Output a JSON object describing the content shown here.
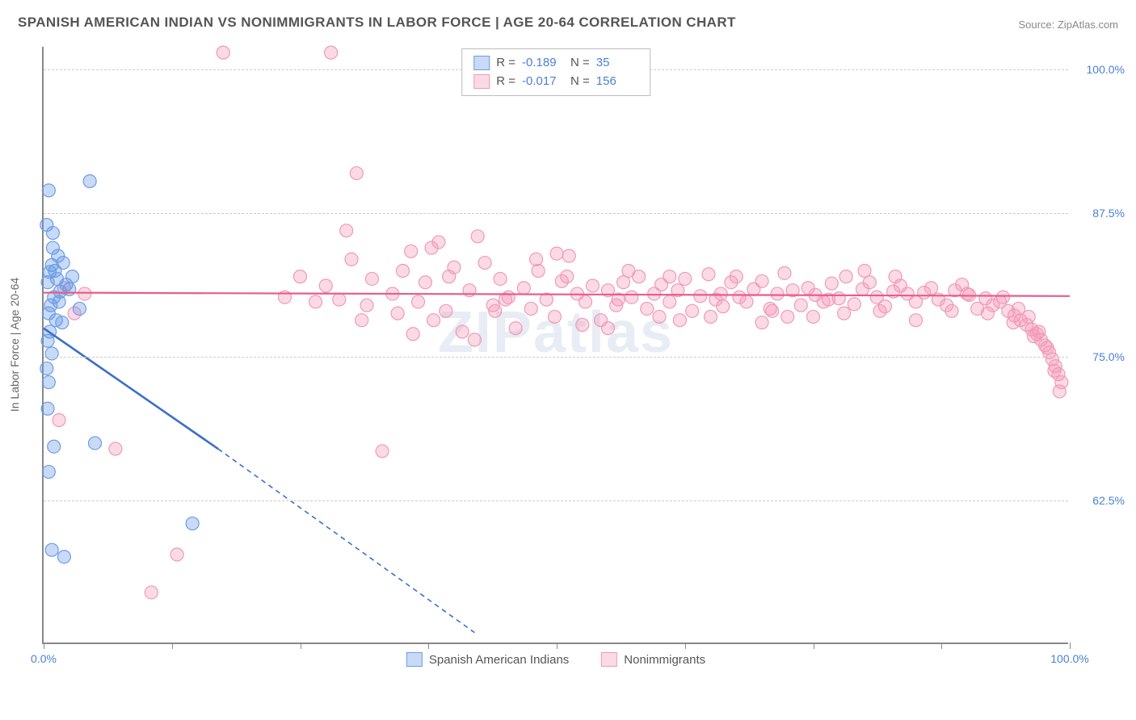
{
  "title": "SPANISH AMERICAN INDIAN VS NONIMMIGRANTS IN LABOR FORCE | AGE 20-64 CORRELATION CHART",
  "source": "Source: ZipAtlas.com",
  "watermark": "ZIPatlas",
  "yaxis_label": "In Labor Force | Age 20-64",
  "chart": {
    "type": "scatter",
    "xlim": [
      0,
      100
    ],
    "ylim": [
      50,
      102
    ],
    "xtick_positions": [
      0,
      12.5,
      25,
      37.5,
      50,
      62.5,
      75,
      87.5,
      100
    ],
    "xtick_labels": {
      "0": "0.0%",
      "100": "100.0%"
    },
    "ytick_positions": [
      62.5,
      75.0,
      87.5,
      100.0
    ],
    "ytick_labels": [
      "62.5%",
      "75.0%",
      "87.5%",
      "100.0%"
    ],
    "grid_color": "#cccccc",
    "axis_color": "#888888",
    "background": "#ffffff"
  },
  "series": {
    "blue": {
      "label": "Spanish American Indians",
      "fill": "rgba(100,150,230,0.35)",
      "stroke": "#6a9de8",
      "line_color": "#3b6fc9",
      "r_label": "R = ",
      "r_value": "-0.189",
      "n_label": "N = ",
      "n_value": "35",
      "marker_r": 8,
      "trend": {
        "x1": 0,
        "y1": 77.5,
        "x2_solid": 17,
        "y2_solid": 67,
        "x2_dash": 42,
        "y2_dash": 51
      },
      "points": [
        [
          0.3,
          86.5
        ],
        [
          0.5,
          89.5
        ],
        [
          0.8,
          83
        ],
        [
          0.9,
          84.5
        ],
        [
          0.4,
          81.5
        ],
        [
          1.1,
          82.5
        ],
        [
          1.3,
          81.8
        ],
        [
          1.6,
          80.7
        ],
        [
          0.7,
          79.5
        ],
        [
          1.0,
          80.2
        ],
        [
          0.5,
          78.8
        ],
        [
          1.5,
          79.8
        ],
        [
          2.5,
          80.9
        ],
        [
          1.2,
          78.2
        ],
        [
          0.6,
          77.2
        ],
        [
          0.4,
          76.4
        ],
        [
          0.8,
          75.3
        ],
        [
          0.3,
          74.0
        ],
        [
          0.5,
          72.8
        ],
        [
          0.4,
          70.5
        ],
        [
          1.0,
          67.2
        ],
        [
          0.5,
          65.0
        ],
        [
          0.8,
          58.2
        ],
        [
          2.0,
          57.6
        ],
        [
          14.5,
          60.5
        ],
        [
          5.0,
          67.5
        ],
        [
          3.5,
          79.2
        ],
        [
          2.2,
          81.3
        ],
        [
          1.9,
          83.2
        ],
        [
          0.6,
          82.4
        ],
        [
          1.8,
          78.0
        ],
        [
          2.8,
          82.0
        ],
        [
          4.5,
          90.3
        ],
        [
          0.9,
          85.8
        ],
        [
          1.4,
          83.8
        ]
      ]
    },
    "pink": {
      "label": "Nonimmigrants",
      "fill": "rgba(245,150,180,0.35)",
      "stroke": "#ef9ab5",
      "line_color": "#e85d8a",
      "r_label": "R = ",
      "r_value": "-0.017",
      "n_label": "N = ",
      "n_value": "156",
      "marker_r": 8,
      "trend": {
        "x1": 0,
        "y1": 80.6,
        "x2": 100,
        "y2": 80.3
      },
      "points": [
        [
          17.5,
          101.5
        ],
        [
          28.0,
          101.5
        ],
        [
          30.5,
          91.0
        ],
        [
          23.5,
          80.2
        ],
        [
          25.0,
          82.0
        ],
        [
          26.5,
          79.8
        ],
        [
          27.5,
          81.2
        ],
        [
          28.8,
          80.0
        ],
        [
          30.0,
          83.5
        ],
        [
          31.0,
          78.2
        ],
        [
          32.0,
          81.8
        ],
        [
          33.0,
          66.8
        ],
        [
          34.0,
          80.5
        ],
        [
          35.0,
          82.5
        ],
        [
          35.8,
          84.2
        ],
        [
          36.5,
          79.8
        ],
        [
          37.2,
          81.5
        ],
        [
          37.8,
          84.5
        ],
        [
          38.5,
          85.0
        ],
        [
          39.2,
          79.0
        ],
        [
          40.0,
          82.8
        ],
        [
          40.8,
          77.2
        ],
        [
          41.5,
          80.8
        ],
        [
          42.3,
          85.5
        ],
        [
          43.0,
          83.2
        ],
        [
          43.8,
          79.5
        ],
        [
          44.5,
          81.8
        ],
        [
          45.3,
          80.2
        ],
        [
          46.0,
          77.5
        ],
        [
          46.8,
          81.0
        ],
        [
          47.5,
          79.2
        ],
        [
          48.2,
          82.5
        ],
        [
          49.0,
          80.0
        ],
        [
          49.8,
          78.5
        ],
        [
          50.5,
          81.6
        ],
        [
          51.2,
          83.8
        ],
        [
          52.0,
          80.5
        ],
        [
          52.8,
          79.8
        ],
        [
          53.5,
          81.2
        ],
        [
          54.3,
          78.2
        ],
        [
          55.0,
          80.8
        ],
        [
          55.8,
          79.5
        ],
        [
          56.5,
          81.5
        ],
        [
          57.3,
          80.2
        ],
        [
          58.0,
          82.0
        ],
        [
          58.8,
          79.2
        ],
        [
          59.5,
          80.5
        ],
        [
          60.2,
          81.3
        ],
        [
          61.0,
          79.8
        ],
        [
          61.8,
          80.8
        ],
        [
          62.5,
          81.8
        ],
        [
          63.2,
          79.0
        ],
        [
          64.0,
          80.3
        ],
        [
          64.8,
          82.2
        ],
        [
          65.5,
          80.0
        ],
        [
          66.2,
          79.4
        ],
        [
          67.0,
          81.5
        ],
        [
          67.8,
          80.2
        ],
        [
          68.5,
          79.8
        ],
        [
          69.2,
          80.9
        ],
        [
          70.0,
          81.6
        ],
        [
          70.8,
          79.2
        ],
        [
          71.5,
          80.5
        ],
        [
          72.2,
          82.3
        ],
        [
          73.0,
          80.8
        ],
        [
          73.8,
          79.5
        ],
        [
          74.5,
          81.0
        ],
        [
          75.2,
          80.4
        ],
        [
          76.0,
          79.8
        ],
        [
          76.8,
          81.4
        ],
        [
          77.5,
          80.1
        ],
        [
          78.2,
          82.0
        ],
        [
          79.0,
          79.6
        ],
        [
          79.8,
          80.9
        ],
        [
          80.5,
          81.5
        ],
        [
          81.2,
          80.2
        ],
        [
          82.0,
          79.4
        ],
        [
          82.8,
          80.7
        ],
        [
          83.5,
          81.2
        ],
        [
          84.2,
          80.5
        ],
        [
          85.0,
          79.8
        ],
        [
          85.8,
          80.6
        ],
        [
          86.5,
          81.0
        ],
        [
          87.2,
          80.0
        ],
        [
          88.0,
          79.5
        ],
        [
          88.8,
          80.8
        ],
        [
          89.5,
          81.3
        ],
        [
          90.2,
          80.4
        ],
        [
          91.0,
          79.2
        ],
        [
          91.8,
          80.1
        ],
        [
          92.5,
          79.5
        ],
        [
          93.2,
          79.8
        ],
        [
          94.0,
          79.0
        ],
        [
          94.6,
          78.6
        ],
        [
          95.2,
          78.2
        ],
        [
          95.8,
          77.8
        ],
        [
          96.3,
          77.4
        ],
        [
          96.8,
          77.0
        ],
        [
          97.2,
          76.5
        ],
        [
          97.6,
          76.0
        ],
        [
          98.0,
          75.4
        ],
        [
          98.3,
          74.8
        ],
        [
          98.6,
          74.2
        ],
        [
          98.9,
          73.5
        ],
        [
          99.2,
          72.8
        ],
        [
          13.0,
          57.8
        ],
        [
          10.5,
          54.5
        ],
        [
          7.0,
          67.0
        ],
        [
          1.5,
          69.5
        ],
        [
          3.0,
          78.8
        ],
        [
          2.0,
          81.0
        ],
        [
          4.0,
          80.5
        ],
        [
          29.5,
          86.0
        ],
        [
          36.0,
          77.0
        ],
        [
          42.0,
          76.5
        ],
        [
          38.0,
          78.2
        ],
        [
          44.0,
          79.0
        ],
        [
          50.0,
          84.0
        ],
        [
          55.0,
          77.5
        ],
        [
          60.0,
          78.5
        ],
        [
          65.0,
          78.5
        ],
        [
          70.0,
          78.0
        ],
        [
          75.0,
          78.5
        ],
        [
          80.0,
          82.5
        ],
        [
          85.0,
          78.2
        ],
        [
          90.0,
          80.5
        ],
        [
          93.5,
          80.2
        ],
        [
          95.0,
          79.2
        ],
        [
          96.0,
          78.5
        ],
        [
          97.0,
          77.2
        ],
        [
          97.8,
          75.8
        ],
        [
          98.5,
          73.8
        ],
        [
          99.0,
          72.0
        ],
        [
          48.0,
          83.5
        ],
        [
          52.5,
          77.8
        ],
        [
          57.0,
          82.5
        ],
        [
          62.0,
          78.2
        ],
        [
          67.5,
          82.0
        ],
        [
          72.5,
          78.5
        ],
        [
          78.0,
          78.8
        ],
        [
          83.0,
          82.0
        ],
        [
          88.5,
          79.0
        ],
        [
          92.0,
          78.8
        ],
        [
          94.5,
          78.0
        ],
        [
          96.5,
          76.8
        ],
        [
          31.5,
          79.5
        ],
        [
          34.5,
          78.8
        ],
        [
          39.5,
          82.0
        ],
        [
          45.0,
          80.0
        ],
        [
          51.0,
          82.0
        ],
        [
          56.0,
          80.0
        ],
        [
          61.0,
          82.0
        ],
        [
          66.0,
          80.5
        ],
        [
          71.0,
          79.0
        ],
        [
          76.5,
          80.0
        ],
        [
          81.5,
          79.0
        ]
      ]
    }
  }
}
